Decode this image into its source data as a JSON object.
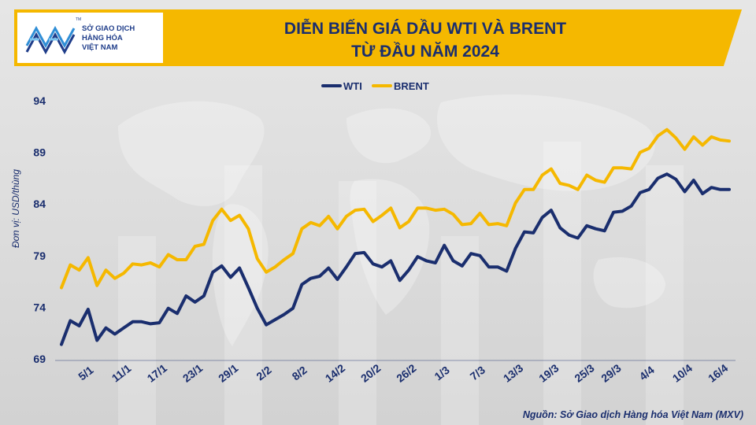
{
  "logo": {
    "line1": "SỞ GIAO DỊCH",
    "line2": "HÀNG HÓA",
    "line3": "VIỆT NAM",
    "tm": "TM"
  },
  "source_note": "Nguồn: Sở Giao dịch Hàng hóa Việt Nam (MXV)",
  "colors": {
    "wti": "#1a2e6e",
    "brent": "#f5b800",
    "banner": "#f5b800",
    "title": "#1a2e6e"
  },
  "chart_data": {
    "type": "line",
    "title_lines": [
      "DIỄN BIẾN GIÁ DẦU WTI VÀ BRENT",
      "TỪ ĐẦU NĂM 2024"
    ],
    "title": "DIỄN BIẾN GIÁ DẦU WTI VÀ BRENT TỪ ĐẦU NĂM 2024",
    "xlabel": "",
    "ylabel": "Đơn vị: USD/thùng",
    "ylim": [
      69,
      94
    ],
    "yticks": [
      69,
      74,
      79,
      84,
      89,
      94
    ],
    "x_tick_labels": [
      "5/1",
      "11/1",
      "17/1",
      "23/1",
      "29/1",
      "2/2",
      "8/2",
      "14/2",
      "20/2",
      "26/2",
      "1/3",
      "7/3",
      "13/3",
      "19/3",
      "25/3",
      "29/3",
      "4/4",
      "10/4",
      "16/4"
    ],
    "x_tick_index": [
      3,
      7,
      11,
      15,
      19,
      23,
      27,
      31,
      35,
      39,
      43,
      47,
      51,
      55,
      59,
      62,
      66,
      70,
      74
    ],
    "legend": [
      "WTI",
      "BRENT"
    ],
    "legend_position": "top-center",
    "grid": false,
    "series": [
      {
        "name": "WTI",
        "values": [
          70.4,
          72.7,
          72.2,
          73.8,
          70.8,
          72.0,
          71.4,
          72.0,
          72.6,
          72.6,
          72.4,
          72.5,
          73.9,
          73.4,
          75.1,
          74.5,
          75.1,
          77.4,
          78.0,
          76.9,
          77.8,
          75.9,
          73.9,
          72.3,
          72.8,
          73.3,
          73.9,
          76.2,
          76.8,
          77.0,
          77.8,
          76.7,
          77.9,
          79.2,
          79.3,
          78.2,
          77.9,
          78.5,
          76.6,
          77.6,
          78.9,
          78.5,
          78.3,
          80.0,
          78.5,
          78.0,
          79.2,
          79.0,
          77.9,
          77.9,
          77.5,
          79.7,
          81.3,
          81.2,
          82.7,
          83.4,
          81.7,
          81.0,
          80.7,
          81.9,
          81.6,
          81.4,
          83.2,
          83.3,
          83.8,
          85.1,
          85.4,
          86.5,
          86.9,
          86.4,
          85.2,
          86.3,
          85.0,
          85.6,
          85.4,
          85.4
        ]
      },
      {
        "name": "BRENT",
        "values": [
          75.9,
          78.1,
          77.6,
          78.8,
          76.1,
          77.6,
          76.8,
          77.3,
          78.2,
          78.1,
          78.3,
          77.9,
          79.1,
          78.6,
          78.6,
          79.9,
          80.1,
          82.4,
          83.5,
          82.4,
          82.9,
          81.6,
          78.7,
          77.4,
          77.9,
          78.6,
          79.2,
          81.6,
          82.2,
          81.9,
          82.8,
          81.6,
          82.8,
          83.4,
          83.5,
          82.3,
          82.9,
          83.6,
          81.7,
          82.3,
          83.6,
          83.6,
          83.4,
          83.5,
          83.0,
          82.0,
          82.1,
          83.1,
          82.0,
          82.1,
          81.9,
          84.1,
          85.4,
          85.4,
          86.8,
          87.4,
          86.0,
          85.8,
          85.4,
          86.8,
          86.3,
          86.1,
          87.5,
          87.5,
          87.4,
          89.0,
          89.4,
          90.6,
          91.2,
          90.4,
          89.3,
          90.5,
          89.7,
          90.5,
          90.2,
          90.1
        ]
      }
    ]
  }
}
